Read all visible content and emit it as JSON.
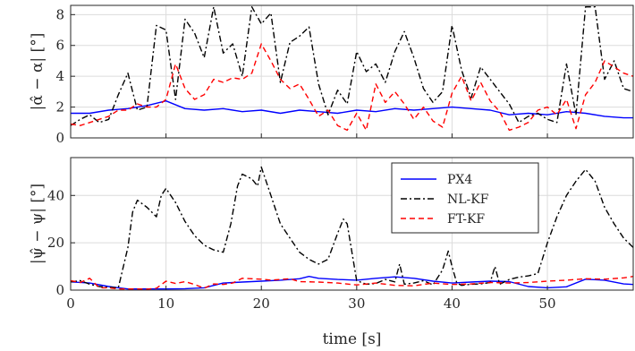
{
  "chart_data": [
    {
      "type": "line",
      "ylabel": "|α̂ − α| [°]",
      "xlim": [
        0,
        59
      ],
      "ylim": [
        0,
        8.6
      ],
      "xticks": [
        0,
        10,
        20,
        30,
        40,
        50
      ],
      "yticks": [
        0,
        2,
        4,
        6,
        8
      ],
      "grid": true,
      "series": [
        {
          "name": "PX4",
          "color": "#0000ff",
          "style": "solid",
          "x": [
            0,
            2,
            4,
            6,
            8,
            10,
            12,
            14,
            16,
            18,
            20,
            22,
            24,
            26,
            28,
            30,
            32,
            34,
            36,
            38,
            40,
            42,
            44,
            46,
            48,
            50,
            52,
            54,
            56,
            58,
            59
          ],
          "y": [
            1.6,
            1.6,
            1.8,
            1.9,
            2.1,
            2.4,
            1.9,
            1.8,
            1.9,
            1.7,
            1.8,
            1.6,
            1.8,
            1.7,
            1.6,
            1.8,
            1.7,
            1.9,
            1.8,
            1.9,
            2.0,
            1.9,
            1.8,
            1.5,
            1.6,
            1.5,
            1.7,
            1.6,
            1.4,
            1.3,
            1.3
          ]
        },
        {
          "name": "NL-KF",
          "color": "#000000",
          "style": "dashdot",
          "x": [
            0,
            1,
            2,
            3,
            4,
            5,
            6,
            7,
            8,
            9,
            10,
            11,
            12,
            13,
            14,
            15,
            16,
            17,
            18,
            19,
            20,
            21,
            22,
            23,
            24,
            25,
            26,
            27,
            28,
            29,
            30,
            31,
            32,
            33,
            34,
            35,
            36,
            37,
            38,
            39,
            40,
            41,
            42,
            43,
            44,
            45,
            46,
            47,
            48,
            49,
            50,
            51,
            52,
            53,
            54,
            55,
            56,
            57,
            58,
            59
          ],
          "y": [
            0.8,
            1.2,
            1.5,
            1.0,
            1.2,
            2.8,
            4.2,
            1.8,
            2.0,
            7.3,
            7.0,
            2.5,
            7.7,
            6.8,
            5.2,
            8.5,
            5.5,
            6.1,
            4.0,
            8.5,
            7.4,
            8.1,
            3.6,
            6.2,
            6.6,
            7.2,
            3.5,
            1.5,
            3.1,
            2.2,
            5.6,
            4.3,
            4.8,
            3.6,
            5.6,
            6.9,
            5.2,
            3.2,
            2.3,
            3.0,
            7.3,
            4.4,
            2.6,
            4.6,
            3.8,
            3.0,
            2.2,
            1.0,
            1.4,
            1.6,
            1.2,
            1.0,
            4.8,
            1.5,
            8.5,
            8.5,
            3.8,
            5.0,
            3.2,
            3.0
          ]
        },
        {
          "name": "FT-KF",
          "color": "#ff0000",
          "style": "dashed",
          "x": [
            0,
            1,
            2,
            3,
            4,
            5,
            6,
            7,
            8,
            9,
            10,
            11,
            12,
            13,
            14,
            15,
            16,
            17,
            18,
            19,
            20,
            21,
            22,
            23,
            24,
            25,
            26,
            27,
            28,
            29,
            30,
            31,
            32,
            33,
            34,
            35,
            36,
            37,
            38,
            39,
            40,
            41,
            42,
            43,
            44,
            45,
            46,
            47,
            48,
            49,
            50,
            51,
            52,
            53,
            54,
            55,
            56,
            57,
            58,
            59
          ],
          "y": [
            0.9,
            0.8,
            1.0,
            1.2,
            1.4,
            1.8,
            1.8,
            2.2,
            2.0,
            2.0,
            2.5,
            4.8,
            3.2,
            2.5,
            2.8,
            3.8,
            3.6,
            3.9,
            3.8,
            4.2,
            6.1,
            5.0,
            3.8,
            3.2,
            3.5,
            2.5,
            1.4,
            1.8,
            0.8,
            0.5,
            1.6,
            0.5,
            3.5,
            2.3,
            3.0,
            2.2,
            1.2,
            2.0,
            1.1,
            0.7,
            2.9,
            4.0,
            2.4,
            3.6,
            2.4,
            1.7,
            0.5,
            0.7,
            1.0,
            1.8,
            2.0,
            1.5,
            2.5,
            0.6,
            2.8,
            3.6,
            5.0,
            4.6,
            4.2,
            4.0
          ]
        }
      ]
    },
    {
      "type": "line",
      "xlabel": "time [s]",
      "ylabel": "|ψ̂ − ψ| [°]",
      "xlim": [
        0,
        59
      ],
      "ylim": [
        0,
        56
      ],
      "xticks": [
        0,
        10,
        20,
        30,
        40,
        50
      ],
      "yticks": [
        0,
        20,
        40
      ],
      "grid": true,
      "legend": "top-right",
      "series": [
        {
          "name": "PX4",
          "color": "#0000ff",
          "style": "solid",
          "x": [
            0,
            2,
            4,
            5,
            6,
            8,
            10,
            12,
            14,
            16,
            18,
            20,
            22,
            24,
            25,
            26,
            28,
            30,
            32,
            34,
            36,
            38,
            40,
            42,
            44,
            46,
            48,
            50,
            52,
            54,
            56,
            58,
            59
          ],
          "y": [
            3.5,
            3.0,
            1.5,
            1.0,
            0.5,
            0.5,
            0.5,
            0.6,
            1.0,
            3.0,
            3.4,
            3.8,
            4.2,
            4.8,
            5.8,
            5.0,
            4.5,
            4.2,
            5.0,
            5.6,
            5.0,
            3.8,
            3.0,
            3.4,
            3.8,
            3.6,
            1.5,
            1.0,
            1.4,
            4.6,
            4.2,
            2.6,
            2.4
          ]
        },
        {
          "name": "NL-KF",
          "color": "#000000",
          "style": "dashdot",
          "x": [
            0,
            1,
            2,
            3,
            4,
            5,
            6,
            6.5,
            7,
            8,
            9,
            9.5,
            10,
            11,
            12,
            13,
            14,
            15,
            16,
            16.8,
            17.5,
            18,
            19,
            19.6,
            20,
            21,
            22,
            23,
            24,
            25,
            26,
            27,
            28,
            28.6,
            29,
            30,
            31,
            32,
            33,
            34,
            34.5,
            35,
            36,
            37,
            38,
            39,
            39.6,
            40,
            40.5,
            41,
            42,
            43,
            44,
            44.5,
            45,
            46,
            47,
            48,
            49,
            50,
            51,
            52,
            53,
            54,
            55,
            56,
            57,
            58,
            59
          ],
          "y": [
            3.5,
            4.0,
            2.5,
            1.5,
            1.2,
            1.0,
            18.0,
            33.0,
            38.0,
            35.0,
            31.0,
            40.0,
            43.0,
            37.0,
            29.0,
            23.0,
            19.0,
            17.0,
            16.0,
            28.0,
            44.0,
            49.0,
            47.0,
            44.0,
            52.0,
            40.0,
            28.0,
            22.0,
            16.0,
            13.0,
            11.0,
            13.0,
            24.0,
            30.0,
            28.0,
            4.0,
            2.5,
            2.8,
            4.5,
            3.5,
            11.0,
            2.5,
            3.0,
            4.0,
            2.2,
            8.5,
            16.5,
            10.0,
            3.0,
            2.0,
            2.5,
            2.6,
            3.2,
            10.0,
            2.5,
            4.5,
            5.5,
            6.0,
            7.0,
            20.0,
            31.0,
            40.0,
            46.0,
            51.0,
            46.0,
            35.0,
            28.0,
            22.0,
            18.0
          ]
        },
        {
          "name": "FT-KF",
          "color": "#ff0000",
          "style": "dashed",
          "x": [
            0,
            1,
            2,
            3,
            4,
            5,
            6,
            7,
            8,
            9,
            10,
            11,
            12,
            13,
            14,
            15,
            16,
            17,
            18,
            19,
            20,
            21,
            22,
            23,
            24,
            26,
            28,
            30,
            32,
            34,
            36,
            38,
            40,
            42,
            44,
            46,
            48,
            50,
            52,
            54,
            56,
            58,
            59
          ],
          "y": [
            4.0,
            3.2,
            5.0,
            1.0,
            1.0,
            0.5,
            0.5,
            0.5,
            0.4,
            0.8,
            3.8,
            2.8,
            3.6,
            2.4,
            0.8,
            2.6,
            2.4,
            3.0,
            5.0,
            4.8,
            4.6,
            4.2,
            4.5,
            4.8,
            3.6,
            3.4,
            3.0,
            2.2,
            3.0,
            2.0,
            1.8,
            3.0,
            2.4,
            2.6,
            3.2,
            3.0,
            3.2,
            3.8,
            4.2,
            4.8,
            4.6,
            5.2,
            5.8
          ]
        }
      ]
    }
  ]
}
